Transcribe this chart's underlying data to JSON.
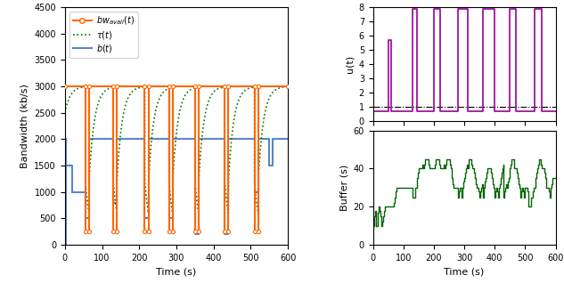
{
  "bw_avail_t": [
    [
      0,
      3000
    ],
    [
      55,
      3000
    ],
    [
      55,
      250
    ],
    [
      65,
      250
    ],
    [
      65,
      3000
    ],
    [
      130,
      3000
    ],
    [
      130,
      250
    ],
    [
      140,
      250
    ],
    [
      140,
      3000
    ],
    [
      215,
      3000
    ],
    [
      215,
      250
    ],
    [
      225,
      250
    ],
    [
      225,
      3000
    ],
    [
      280,
      3000
    ],
    [
      280,
      250
    ],
    [
      290,
      250
    ],
    [
      290,
      3000
    ],
    [
      350,
      3000
    ],
    [
      350,
      250
    ],
    [
      360,
      250
    ],
    [
      360,
      3000
    ],
    [
      430,
      3000
    ],
    [
      430,
      250
    ],
    [
      440,
      250
    ],
    [
      440,
      3000
    ],
    [
      510,
      3000
    ],
    [
      510,
      250
    ],
    [
      520,
      250
    ],
    [
      520,
      3000
    ],
    [
      600,
      3000
    ]
  ],
  "b_t": [
    [
      0,
      0
    ],
    [
      3,
      2000
    ],
    [
      3,
      1500
    ],
    [
      20,
      1500
    ],
    [
      20,
      1000
    ],
    [
      55,
      1000
    ],
    [
      55,
      500
    ],
    [
      65,
      500
    ],
    [
      65,
      2000
    ],
    [
      130,
      2000
    ],
    [
      130,
      800
    ],
    [
      140,
      800
    ],
    [
      140,
      2000
    ],
    [
      215,
      2000
    ],
    [
      215,
      500
    ],
    [
      225,
      500
    ],
    [
      225,
      2000
    ],
    [
      280,
      2000
    ],
    [
      280,
      500
    ],
    [
      290,
      500
    ],
    [
      290,
      2000
    ],
    [
      350,
      2000
    ],
    [
      350,
      200
    ],
    [
      360,
      200
    ],
    [
      360,
      2000
    ],
    [
      430,
      2000
    ],
    [
      430,
      200
    ],
    [
      440,
      200
    ],
    [
      440,
      2000
    ],
    [
      510,
      2000
    ],
    [
      510,
      1000
    ],
    [
      520,
      1000
    ],
    [
      520,
      2000
    ],
    [
      550,
      2000
    ],
    [
      550,
      1500
    ],
    [
      560,
      1500
    ],
    [
      560,
      2000
    ],
    [
      600,
      2000
    ]
  ],
  "tau_segments": [
    {
      "start": 0,
      "v0": 2500,
      "target": 3000,
      "end": 55
    },
    {
      "start": 55,
      "v0": 1200,
      "target": 0,
      "end": 65
    },
    {
      "start": 65,
      "v0": 1200,
      "target": 3000,
      "end": 130
    },
    {
      "start": 130,
      "v0": 1200,
      "target": 0,
      "end": 140
    },
    {
      "start": 140,
      "v0": 1200,
      "target": 3000,
      "end": 215
    },
    {
      "start": 215,
      "v0": 1200,
      "target": 0,
      "end": 225
    },
    {
      "start": 225,
      "v0": 1200,
      "target": 3000,
      "end": 280
    },
    {
      "start": 280,
      "v0": 1200,
      "target": 0,
      "end": 290
    },
    {
      "start": 290,
      "v0": 1200,
      "target": 3000,
      "end": 350
    },
    {
      "start": 350,
      "v0": 1200,
      "target": 0,
      "end": 360
    },
    {
      "start": 360,
      "v0": 1200,
      "target": 3000,
      "end": 430
    },
    {
      "start": 430,
      "v0": 1200,
      "target": 0,
      "end": 440
    },
    {
      "start": 440,
      "v0": 1200,
      "target": 3000,
      "end": 510
    },
    {
      "start": 510,
      "v0": 1200,
      "target": 0,
      "end": 520
    },
    {
      "start": 520,
      "v0": 1200,
      "target": 3000,
      "end": 600
    }
  ],
  "u_t": [
    [
      0,
      0.7
    ],
    [
      50,
      0.7
    ],
    [
      50,
      5.7
    ],
    [
      60,
      5.7
    ],
    [
      60,
      0.7
    ],
    [
      130,
      0.7
    ],
    [
      130,
      7.9
    ],
    [
      145,
      7.9
    ],
    [
      145,
      0.7
    ],
    [
      200,
      0.7
    ],
    [
      200,
      7.9
    ],
    [
      220,
      7.9
    ],
    [
      220,
      0.7
    ],
    [
      280,
      0.7
    ],
    [
      280,
      7.9
    ],
    [
      310,
      7.9
    ],
    [
      310,
      0.7
    ],
    [
      360,
      0.7
    ],
    [
      360,
      7.9
    ],
    [
      400,
      7.9
    ],
    [
      400,
      0.7
    ],
    [
      450,
      0.7
    ],
    [
      450,
      7.9
    ],
    [
      470,
      7.9
    ],
    [
      470,
      0.7
    ],
    [
      530,
      0.7
    ],
    [
      530,
      7.9
    ],
    [
      555,
      7.9
    ],
    [
      555,
      0.7
    ],
    [
      600,
      0.7
    ]
  ],
  "buffer_t": [
    [
      0,
      10
    ],
    [
      4,
      10
    ],
    [
      4,
      15
    ],
    [
      8,
      15
    ],
    [
      8,
      18
    ],
    [
      10,
      18
    ],
    [
      10,
      10
    ],
    [
      13,
      10
    ],
    [
      15,
      15
    ],
    [
      17,
      17
    ],
    [
      18,
      20
    ],
    [
      20,
      20
    ],
    [
      22,
      18
    ],
    [
      24,
      15
    ],
    [
      26,
      10
    ],
    [
      28,
      10
    ],
    [
      30,
      12
    ],
    [
      32,
      15
    ],
    [
      35,
      18
    ],
    [
      38,
      20
    ],
    [
      40,
      20
    ],
    [
      42,
      20
    ],
    [
      45,
      20
    ],
    [
      48,
      20
    ],
    [
      50,
      20
    ],
    [
      53,
      20
    ],
    [
      55,
      20
    ],
    [
      58,
      20
    ],
    [
      60,
      20
    ],
    [
      63,
      20
    ],
    [
      65,
      20
    ],
    [
      68,
      22
    ],
    [
      70,
      22
    ],
    [
      72,
      25
    ],
    [
      75,
      28
    ],
    [
      78,
      30
    ],
    [
      80,
      30
    ],
    [
      83,
      30
    ],
    [
      85,
      30
    ],
    [
      88,
      30
    ],
    [
      90,
      30
    ],
    [
      93,
      30
    ],
    [
      95,
      30
    ],
    [
      98,
      30
    ],
    [
      100,
      30
    ],
    [
      103,
      30
    ],
    [
      105,
      30
    ],
    [
      108,
      30
    ],
    [
      110,
      30
    ],
    [
      113,
      30
    ],
    [
      115,
      30
    ],
    [
      118,
      30
    ],
    [
      120,
      30
    ],
    [
      123,
      30
    ],
    [
      125,
      30
    ],
    [
      128,
      30
    ],
    [
      130,
      25
    ],
    [
      133,
      25
    ],
    [
      135,
      25
    ],
    [
      138,
      28
    ],
    [
      140,
      30
    ],
    [
      143,
      33
    ],
    [
      145,
      35
    ],
    [
      148,
      38
    ],
    [
      150,
      40
    ],
    [
      153,
      40
    ],
    [
      155,
      40
    ],
    [
      158,
      40
    ],
    [
      160,
      40
    ],
    [
      163,
      42
    ],
    [
      165,
      40
    ],
    [
      168,
      42
    ],
    [
      170,
      45
    ],
    [
      173,
      45
    ],
    [
      175,
      45
    ],
    [
      178,
      45
    ],
    [
      180,
      45
    ],
    [
      183,
      42
    ],
    [
      185,
      40
    ],
    [
      188,
      40
    ],
    [
      190,
      40
    ],
    [
      193,
      40
    ],
    [
      195,
      40
    ],
    [
      198,
      40
    ],
    [
      200,
      40
    ],
    [
      203,
      42
    ],
    [
      205,
      45
    ],
    [
      208,
      45
    ],
    [
      210,
      45
    ],
    [
      213,
      45
    ],
    [
      215,
      45
    ],
    [
      218,
      42
    ],
    [
      220,
      40
    ],
    [
      223,
      40
    ],
    [
      225,
      40
    ],
    [
      228,
      40
    ],
    [
      230,
      40
    ],
    [
      233,
      42
    ],
    [
      235,
      40
    ],
    [
      238,
      42
    ],
    [
      240,
      45
    ],
    [
      243,
      45
    ],
    [
      245,
      45
    ],
    [
      248,
      45
    ],
    [
      250,
      45
    ],
    [
      253,
      42
    ],
    [
      255,
      40
    ],
    [
      258,
      38
    ],
    [
      260,
      35
    ],
    [
      263,
      32
    ],
    [
      265,
      30
    ],
    [
      268,
      30
    ],
    [
      270,
      30
    ],
    [
      273,
      30
    ],
    [
      275,
      30
    ],
    [
      278,
      28
    ],
    [
      280,
      25
    ],
    [
      283,
      28
    ],
    [
      285,
      30
    ],
    [
      288,
      30
    ],
    [
      290,
      25
    ],
    [
      293,
      28
    ],
    [
      295,
      30
    ],
    [
      298,
      33
    ],
    [
      300,
      35
    ],
    [
      303,
      38
    ],
    [
      305,
      40
    ],
    [
      308,
      42
    ],
    [
      310,
      40
    ],
    [
      313,
      42
    ],
    [
      315,
      45
    ],
    [
      318,
      45
    ],
    [
      320,
      45
    ],
    [
      323,
      42
    ],
    [
      325,
      40
    ],
    [
      328,
      40
    ],
    [
      330,
      40
    ],
    [
      333,
      38
    ],
    [
      335,
      35
    ],
    [
      338,
      32
    ],
    [
      340,
      30
    ],
    [
      343,
      30
    ],
    [
      345,
      30
    ],
    [
      348,
      28
    ],
    [
      350,
      25
    ],
    [
      353,
      28
    ],
    [
      355,
      30
    ],
    [
      358,
      32
    ],
    [
      360,
      25
    ],
    [
      363,
      28
    ],
    [
      365,
      30
    ],
    [
      368,
      33
    ],
    [
      370,
      35
    ],
    [
      373,
      38
    ],
    [
      375,
      40
    ],
    [
      378,
      40
    ],
    [
      380,
      40
    ],
    [
      383,
      40
    ],
    [
      385,
      40
    ],
    [
      388,
      38
    ],
    [
      390,
      35
    ],
    [
      393,
      32
    ],
    [
      395,
      30
    ],
    [
      398,
      28
    ],
    [
      400,
      25
    ],
    [
      403,
      28
    ],
    [
      405,
      30
    ],
    [
      408,
      28
    ],
    [
      410,
      25
    ],
    [
      413,
      28
    ],
    [
      415,
      30
    ],
    [
      418,
      32
    ],
    [
      420,
      35
    ],
    [
      423,
      38
    ],
    [
      425,
      40
    ],
    [
      428,
      42
    ],
    [
      430,
      25
    ],
    [
      433,
      28
    ],
    [
      435,
      30
    ],
    [
      438,
      32
    ],
    [
      440,
      30
    ],
    [
      443,
      33
    ],
    [
      445,
      35
    ],
    [
      448,
      38
    ],
    [
      450,
      40
    ],
    [
      453,
      42
    ],
    [
      455,
      45
    ],
    [
      458,
      45
    ],
    [
      460,
      45
    ],
    [
      463,
      42
    ],
    [
      465,
      40
    ],
    [
      468,
      40
    ],
    [
      470,
      40
    ],
    [
      473,
      38
    ],
    [
      475,
      35
    ],
    [
      478,
      32
    ],
    [
      480,
      30
    ],
    [
      483,
      28
    ],
    [
      485,
      25
    ],
    [
      488,
      28
    ],
    [
      490,
      30
    ],
    [
      493,
      28
    ],
    [
      495,
      25
    ],
    [
      498,
      28
    ],
    [
      500,
      30
    ],
    [
      503,
      30
    ],
    [
      505,
      30
    ],
    [
      508,
      28
    ],
    [
      510,
      20
    ],
    [
      513,
      20
    ],
    [
      515,
      20
    ],
    [
      518,
      22
    ],
    [
      520,
      25
    ],
    [
      523,
      25
    ],
    [
      525,
      28
    ],
    [
      528,
      30
    ],
    [
      530,
      30
    ],
    [
      533,
      32
    ],
    [
      535,
      35
    ],
    [
      538,
      38
    ],
    [
      540,
      40
    ],
    [
      543,
      42
    ],
    [
      545,
      45
    ],
    [
      548,
      45
    ],
    [
      550,
      45
    ],
    [
      553,
      42
    ],
    [
      555,
      40
    ],
    [
      558,
      40
    ],
    [
      560,
      40
    ],
    [
      563,
      38
    ],
    [
      565,
      35
    ],
    [
      568,
      32
    ],
    [
      570,
      30
    ],
    [
      573,
      30
    ],
    [
      575,
      30
    ],
    [
      578,
      28
    ],
    [
      580,
      25
    ],
    [
      583,
      28
    ],
    [
      585,
      30
    ],
    [
      588,
      32
    ],
    [
      590,
      35
    ],
    [
      593,
      35
    ],
    [
      595,
      35
    ],
    [
      598,
      35
    ],
    [
      600,
      35
    ]
  ],
  "bw_color": "#FF6600",
  "tau_color": "#007700",
  "b_color": "#5588CC",
  "u_color": "#990099",
  "buffer_color": "#006400",
  "ref_line_color": "#000000",
  "ylim_bw": [
    0,
    4500
  ],
  "ylim_u": [
    0,
    8
  ],
  "ylim_buffer": [
    0,
    60
  ],
  "xlim": [
    0,
    600
  ],
  "yticks_bw": [
    0,
    500,
    1000,
    1500,
    2000,
    2500,
    3000,
    3500,
    4000,
    4500
  ],
  "yticks_u": [
    0,
    1,
    2,
    3,
    4,
    5,
    6,
    7,
    8
  ],
  "yticks_buffer": [
    0,
    20,
    40,
    60
  ],
  "xticks": [
    0,
    100,
    200,
    300,
    400,
    500,
    600
  ],
  "xlabel": "Time (s)",
  "ylabel_bw": "Bandwidth (kb/s)",
  "ylabel_u": "u(t)",
  "ylabel_buffer": "Buffer (s)",
  "ref_line_value": 1.0,
  "tau_rate": 0.07
}
